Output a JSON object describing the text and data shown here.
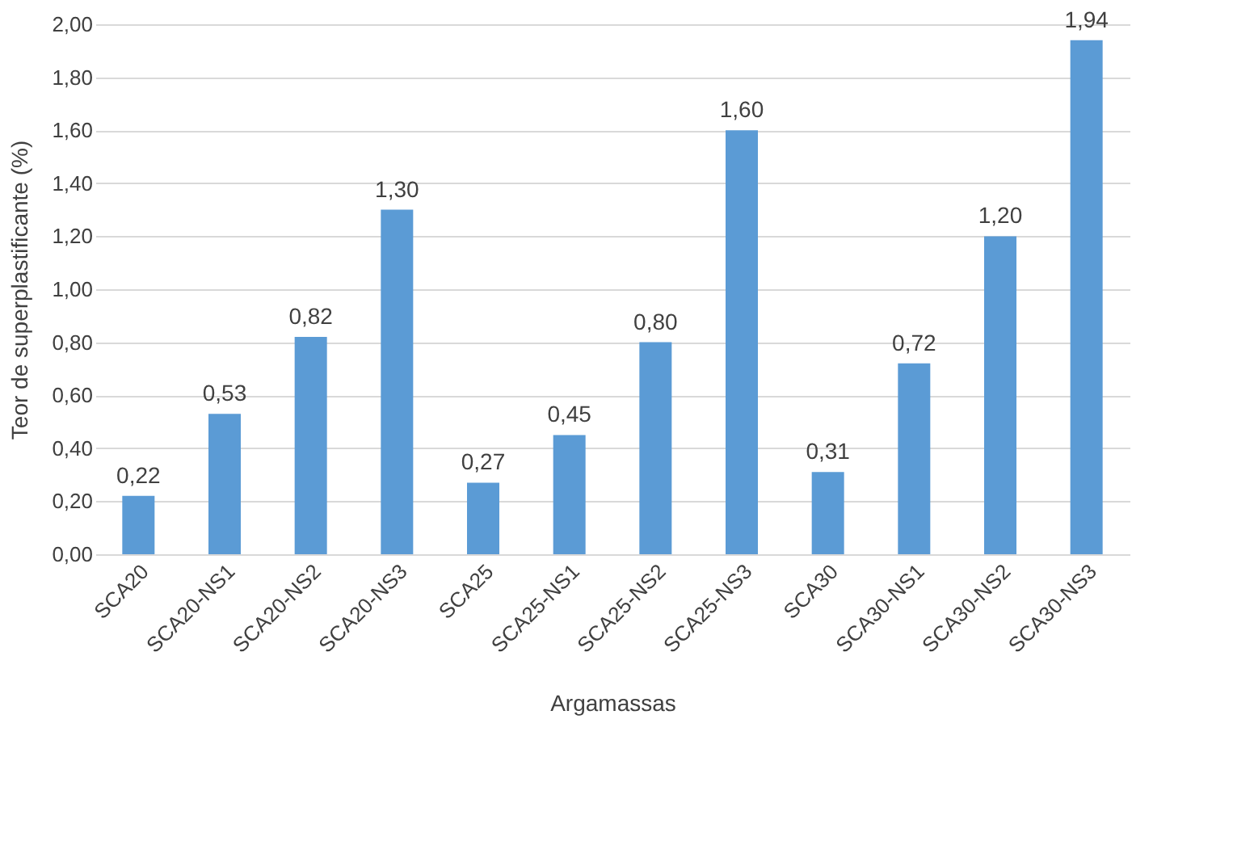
{
  "chart_data": {
    "type": "bar",
    "xlabel": "Argamassas",
    "ylabel": "Teor de superplastificante (%)",
    "categories": [
      "SCA20",
      "SCA20-NS1",
      "SCA20-NS2",
      "SCA20-NS3",
      "SCA25",
      "SCA25-NS1",
      "SCA25-NS2",
      "SCA25-NS3",
      "SCA30",
      "SCA30-NS1",
      "SCA30-NS2",
      "SCA30-NS3"
    ],
    "values": [
      0.22,
      0.53,
      0.82,
      1.3,
      0.27,
      0.45,
      0.8,
      1.6,
      0.31,
      0.72,
      1.2,
      1.94
    ],
    "value_labels": [
      "0,22",
      "0,53",
      "0,82",
      "1,30",
      "0,27",
      "0,45",
      "0,80",
      "1,60",
      "0,31",
      "0,72",
      "1,20",
      "1,94"
    ],
    "color": "#5b9bd5",
    "ylim": [
      0,
      2
    ],
    "yticks": [
      {
        "value": 0,
        "label": "0,00"
      },
      {
        "value": 0.2,
        "label": "0,20"
      },
      {
        "value": 0.4,
        "label": "0,40"
      },
      {
        "value": 0.6,
        "label": "0,60"
      },
      {
        "value": 0.8,
        "label": "0,80"
      },
      {
        "value": 1.0,
        "label": "1,00"
      },
      {
        "value": 1.2,
        "label": "1,20"
      },
      {
        "value": 1.4,
        "label": "1,40"
      },
      {
        "value": 1.6,
        "label": "1,60"
      },
      {
        "value": 1.8,
        "label": "1,80"
      },
      {
        "value": 2.0,
        "label": "2,00"
      }
    ],
    "grid": "y"
  }
}
